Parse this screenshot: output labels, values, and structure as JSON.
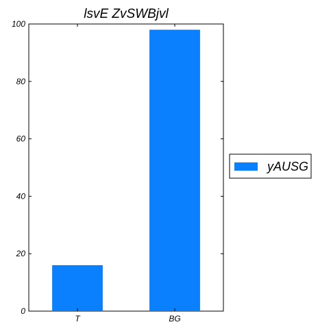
{
  "chart_data": {
    "type": "bar",
    "title": "lsvE ZvSWBjvl",
    "xlabel": "",
    "ylabel": "",
    "categories": [
      "T",
      "BG"
    ],
    "series": [
      {
        "name": "yAUSG",
        "values": [
          16,
          98
        ]
      }
    ],
    "ylim": [
      0,
      100
    ],
    "yticks": [
      0,
      20,
      40,
      60,
      80,
      100
    ],
    "grid": false,
    "legend_position": "right",
    "colors": {
      "bar": "#0a80ff",
      "axis": "#000000"
    }
  }
}
